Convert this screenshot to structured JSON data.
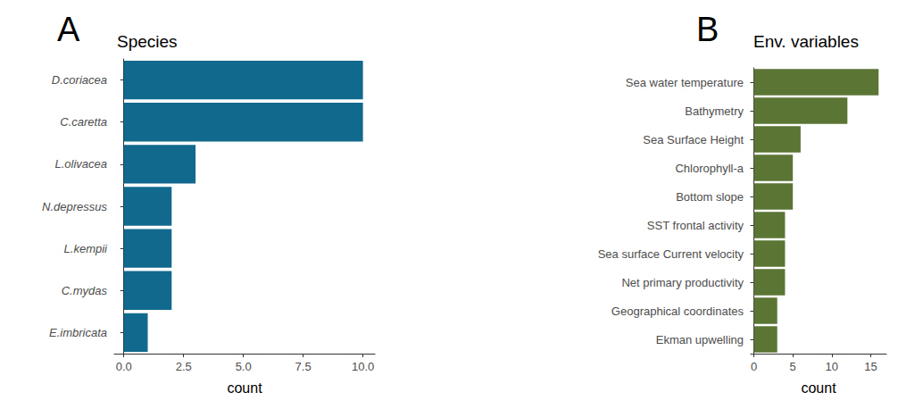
{
  "chart_data": [
    {
      "type": "bar",
      "panel_label": "A",
      "title": "Species",
      "xlabel": "count",
      "orientation": "horizontal",
      "grid": false,
      "color": "#11698e",
      "categories": [
        "D.coriacea",
        "C.caretta",
        "L.olivacea",
        "N.depressus",
        "L.kempii",
        "C.mydas",
        "E.imbricata"
      ],
      "values": [
        10,
        10,
        3,
        2,
        2,
        2,
        1
      ],
      "xlim": [
        -0.4,
        10.5
      ],
      "xticks": [
        {
          "value": 0,
          "label": "0.0"
        },
        2.5,
        {
          "value": 5,
          "label": "5.0"
        },
        7.5,
        {
          "value": 10,
          "label": "10.0"
        }
      ]
    },
    {
      "type": "bar",
      "panel_label": "B",
      "title": "Env. variables",
      "xlabel": "count",
      "orientation": "horizontal",
      "grid": false,
      "color": "#5b7534",
      "categories": [
        "Sea water temperature",
        "Bathymetry",
        "Sea Surface Height",
        "Chlorophyll-a",
        "Bottom slope",
        "SST frontal activity",
        "Sea surface Current velocity",
        "Net primary productivity",
        "Geographical coordinates",
        "Ekman upwelling"
      ],
      "values": [
        16,
        12,
        6,
        5,
        5,
        4,
        4,
        4,
        3,
        3
      ],
      "xlim": [
        -0.4,
        17
      ],
      "xticks": [
        0,
        5,
        10,
        15
      ]
    }
  ]
}
